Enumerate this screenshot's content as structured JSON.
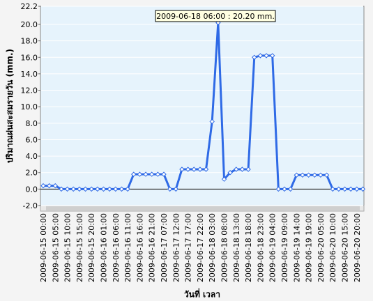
{
  "chart_data": {
    "type": "line",
    "y_label": "ปริมาณฝนสะสมรายวัน  (mm.)",
    "x_label": "วันที่ เวลา",
    "annotation": "2009-06-18 06:00 : 20.20 mm.",
    "color": "#2f6ae6",
    "grid": true,
    "ylim": [
      -2.0,
      22.2
    ],
    "yticks": [
      {
        "value": -2.0,
        "label": "-2.0"
      },
      {
        "value": 0,
        "label": "0.0"
      },
      {
        "value": 2.0,
        "label": "2.0"
      },
      {
        "value": 4.0,
        "label": "4.0"
      },
      {
        "value": 6.0,
        "label": "6.0"
      },
      {
        "value": 8.0,
        "label": "8.0"
      },
      {
        "value": 10.0,
        "label": "10.0"
      },
      {
        "value": 12.0,
        "label": "12.0"
      },
      {
        "value": 14.0,
        "label": "14.0"
      },
      {
        "value": 16.0,
        "label": "16.0"
      },
      {
        "value": 18.0,
        "label": "18.0"
      },
      {
        "value": 20.0,
        "label": "20.0"
      },
      22.2
    ],
    "categories": [
      "2009-06-15 00:00",
      null,
      "2009-06-15 05:00",
      null,
      "2009-06-15 10:00",
      null,
      "2009-06-15 15:00",
      null,
      "2009-06-15 20:00",
      null,
      "2009-06-16 01:00",
      null,
      "2009-06-16 06:00",
      null,
      "2009-06-16 11:00",
      null,
      "2009-06-16 16:00",
      null,
      "2009-06-16 21:00",
      null,
      "2009-06-17 07:00",
      null,
      "2009-06-17 12:00",
      null,
      "2009-06-17 17:00",
      null,
      "2009-06-17 22:00",
      null,
      "2009-06-18 03:00",
      null,
      "2009-06-18 08:00",
      null,
      "2009-06-18 13:00",
      null,
      "2009-06-18 18:00",
      null,
      "2009-06-18 23:00",
      null,
      "2009-06-19 04:00",
      null,
      "2009-06-19 09:00",
      null,
      "2009-06-19 14:00",
      null,
      "2009-06-19 19:00",
      null,
      "2009-06-20 05:00",
      null,
      "2009-06-20 10:00",
      null,
      "2009-06-20 15:00",
      null,
      "2009-06-20 20:00",
      null
    ],
    "values": [
      0.4,
      0.4,
      0.4,
      0,
      0,
      0,
      0,
      0,
      0,
      0,
      0,
      0,
      0,
      0,
      0,
      1.8,
      1.8,
      1.8,
      1.8,
      1.8,
      1.8,
      0,
      0,
      2.4,
      2.4,
      2.4,
      2.4,
      2.4,
      8.2,
      20.2,
      1.2,
      2.0,
      2.4,
      2.4,
      2.4,
      16.0,
      16.2,
      16.2,
      16.2,
      0,
      0,
      0,
      1.7,
      1.7,
      1.7,
      1.7,
      1.7,
      1.7,
      0,
      0,
      0,
      0,
      0,
      0
    ]
  }
}
